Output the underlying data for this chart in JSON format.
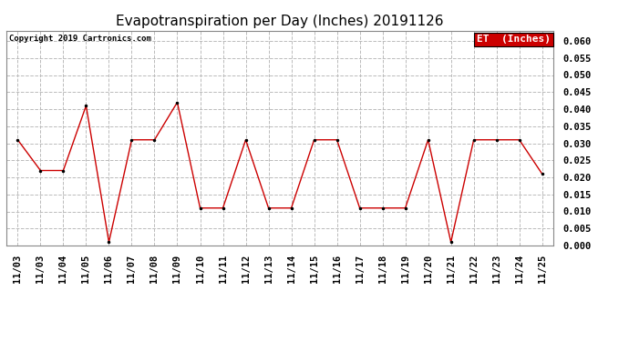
{
  "title": "Evapotranspiration per Day (Inches) 20191126",
  "copyright": "Copyright 2019 Cartronics.com",
  "legend_label": "ET  (Inches)",
  "x_labels": [
    "11/03",
    "11/03",
    "11/04",
    "11/05",
    "11/06",
    "11/07",
    "11/08",
    "11/09",
    "11/10",
    "11/11",
    "11/12",
    "11/13",
    "11/14",
    "11/15",
    "11/16",
    "11/17",
    "11/18",
    "11/19",
    "11/20",
    "11/21",
    "11/22",
    "11/23",
    "11/24",
    "11/25"
  ],
  "y_values": [
    0.031,
    0.022,
    0.022,
    0.041,
    0.001,
    0.031,
    0.031,
    0.042,
    0.011,
    0.011,
    0.031,
    0.011,
    0.011,
    0.031,
    0.031,
    0.011,
    0.011,
    0.011,
    0.031,
    0.001,
    0.031,
    0.031,
    0.031,
    0.021
  ],
  "ylim": [
    0.0,
    0.063
  ],
  "yticks": [
    0.0,
    0.005,
    0.01,
    0.015,
    0.02,
    0.025,
    0.03,
    0.035,
    0.04,
    0.045,
    0.05,
    0.055,
    0.06
  ],
  "line_color": "#cc0000",
  "marker_color": "#000000",
  "marker_size": 3,
  "line_width": 1.0,
  "grid_color": "#bbbbbb",
  "grid_style": "--",
  "background_color": "#ffffff",
  "legend_bg": "#cc0000",
  "legend_text_color": "#ffffff",
  "title_fontsize": 11,
  "copyright_fontsize": 6.5,
  "tick_fontsize": 7.5,
  "legend_fontsize": 8
}
